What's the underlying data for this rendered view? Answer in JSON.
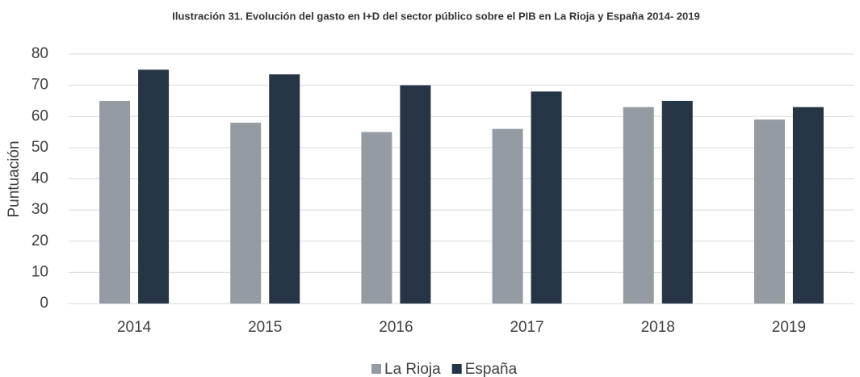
{
  "chart_data": {
    "type": "bar",
    "title": "Ilustración 31. Evolución del gasto en I+D del sector público sobre el PIB en La Rioja y España 2014- 2019",
    "y_label": "Puntuación",
    "categories": [
      "2014",
      "2015",
      "2016",
      "2017",
      "2018",
      "2019"
    ],
    "series": [
      {
        "name": "La Rioja",
        "color": "#949ba2",
        "values": [
          65,
          58,
          55,
          56,
          63,
          59
        ]
      },
      {
        "name": "España",
        "color": "#263545",
        "values": [
          75,
          73.5,
          70,
          68,
          65,
          63
        ]
      }
    ],
    "ylim": [
      0,
      80
    ],
    "yticks": [
      0,
      10,
      20,
      30,
      40,
      50,
      60,
      70,
      80
    ],
    "grid": true,
    "legend": "bottom"
  }
}
